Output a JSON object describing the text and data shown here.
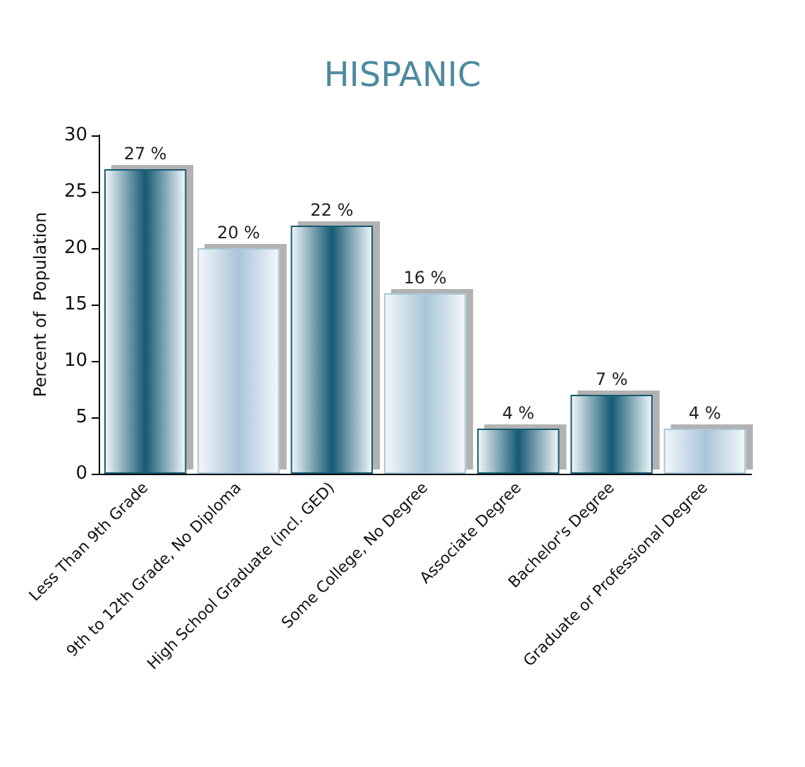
{
  "chart_data": {
    "type": "bar",
    "title": "HISPANIC",
    "ylabel": "Percent of  Population",
    "categories": [
      "Less Than 9th Grade",
      "9th to 12th Grade, No Diploma",
      "High School Graduate (incl. GED)",
      "Some College, No Degree",
      "Associate Degree",
      "Bachelor's Degree",
      "Graduate or Professional Degree"
    ],
    "values": [
      27,
      20,
      22,
      16,
      4,
      7,
      4
    ],
    "value_labels": [
      "27 %",
      "20 %",
      "22 %",
      "16 %",
      "4 %",
      "7 %",
      "4 %"
    ],
    "colors": [
      "#155a72",
      "#a9c6d8",
      "#155a72",
      "#a9c6d8",
      "#155a72",
      "#155a72",
      "#a9c6d8"
    ],
    "ylim": [
      0,
      30
    ],
    "yticks": [
      0,
      5,
      10,
      15,
      20,
      25,
      30
    ],
    "grid": false
  }
}
